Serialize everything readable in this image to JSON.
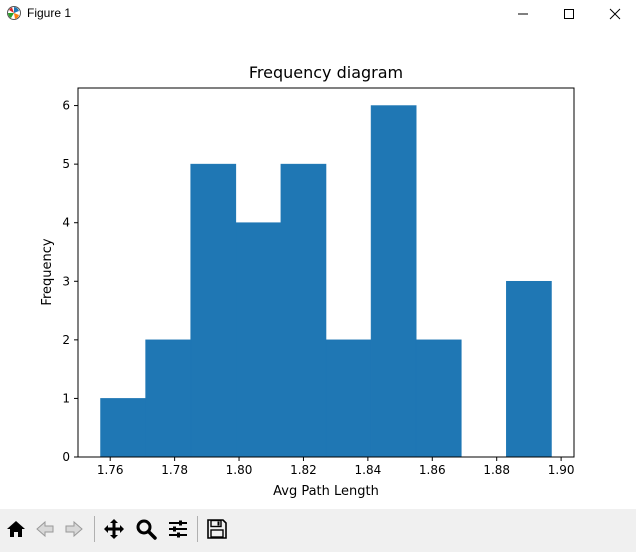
{
  "window": {
    "title": "Figure 1",
    "icon": "matplotlib-icon",
    "controls": [
      "minimize-icon",
      "maximize-icon",
      "close-icon"
    ]
  },
  "toolbar": {
    "tools": [
      "home-icon",
      "back-arrow-icon",
      "forward-arrow-icon",
      "pan-move-icon",
      "zoom-magnifier-icon",
      "configure-subplots-icon",
      "save-floppy-icon"
    ]
  },
  "colors": {
    "bar": "#1f77b4"
  },
  "chart_data": {
    "type": "bar",
    "title": "Frequency diagram",
    "xlabel": "Avg Path Length",
    "ylabel": "Frequency",
    "bins": [
      {
        "start": 1.757,
        "end": 1.771,
        "value": 1
      },
      {
        "start": 1.771,
        "end": 1.785,
        "value": 2
      },
      {
        "start": 1.785,
        "end": 1.799,
        "value": 5
      },
      {
        "start": 1.799,
        "end": 1.813,
        "value": 4
      },
      {
        "start": 1.813,
        "end": 1.827,
        "value": 5
      },
      {
        "start": 1.827,
        "end": 1.841,
        "value": 2
      },
      {
        "start": 1.841,
        "end": 1.855,
        "value": 6
      },
      {
        "start": 1.855,
        "end": 1.869,
        "value": 2
      },
      {
        "start": 1.869,
        "end": 1.883,
        "value": 0
      },
      {
        "start": 1.883,
        "end": 1.897,
        "value": 3
      }
    ],
    "xlim": [
      1.75,
      1.904
    ],
    "ylim": [
      0,
      6.3
    ],
    "xticks": [
      1.76,
      1.78,
      1.8,
      1.82,
      1.84,
      1.86,
      1.88,
      1.9
    ],
    "xtick_labels": [
      "1.76",
      "1.78",
      "1.80",
      "1.82",
      "1.84",
      "1.86",
      "1.88",
      "1.90"
    ],
    "yticks": [
      0,
      1,
      2,
      3,
      4,
      5,
      6
    ],
    "ytick_labels": [
      "0",
      "1",
      "2",
      "3",
      "4",
      "5",
      "6"
    ],
    "grid": false
  }
}
